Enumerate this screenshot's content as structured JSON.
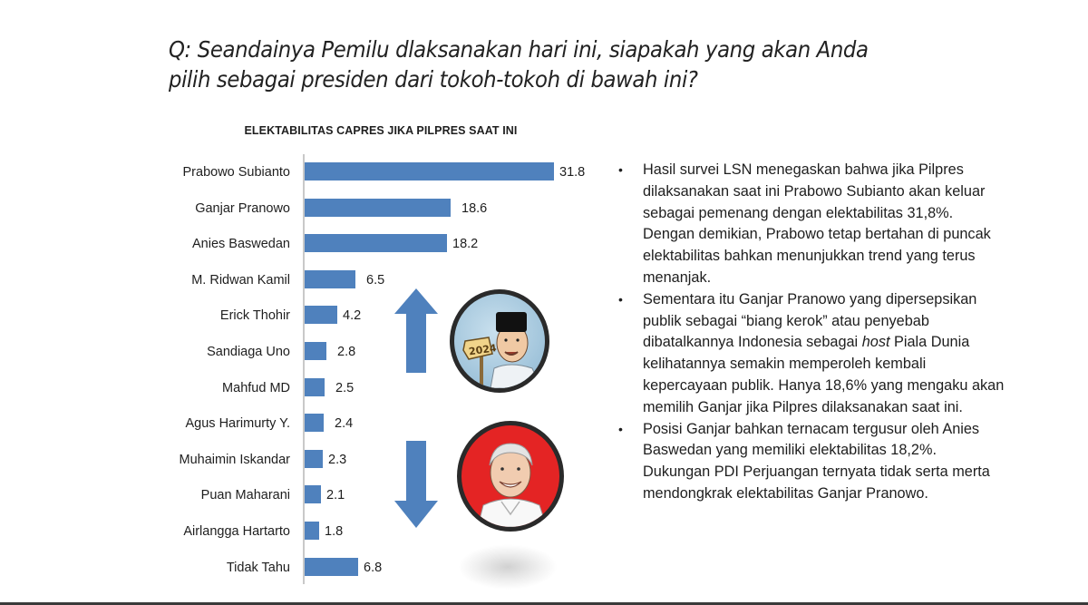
{
  "question": "Q: Seandainya Pemilu dlaksanakan hari ini, siapakah yang akan Anda pilih sebagai presiden dari tokoh-tokoh di bawah ini?",
  "question_lines": [
    "Q: Seandainya Pemilu dlaksanakan hari ini, siapakah yang akan Anda",
    "pilih sebagai presiden dari tokoh-tokoh di bawah ini?"
  ],
  "chart_data": {
    "type": "bar",
    "orientation": "horizontal",
    "title": "ELEKTABILITAS CAPRES JIKA PILPRES SAAT INI",
    "xlabel": "",
    "ylabel": "",
    "categories": [
      "Prabowo Subianto",
      "Ganjar Pranowo",
      "Anies Baswedan",
      "M. Ridwan Kamil",
      "Erick Thohir",
      "Sandiaga Uno",
      "Mahfud MD",
      "Agus Harimurty Y.",
      "Muhaimin Iskandar",
      "Puan Maharani",
      "Airlangga Hartarto",
      "Tidak Tahu"
    ],
    "values": [
      31.8,
      18.6,
      18.2,
      6.5,
      4.2,
      2.8,
      2.5,
      2.4,
      2.3,
      2.1,
      1.8,
      6.8
    ],
    "value_labels": [
      "31.8",
      "18.6",
      "18.2",
      "6.5",
      "4.2",
      "2.8",
      "2.5",
      "2.4",
      "2.3",
      "2.1",
      "1.8",
      "6.8"
    ],
    "xlim": [
      0,
      35
    ],
    "grid": false,
    "legend": null,
    "bar_color": "#4f81bd",
    "data_labels": true
  },
  "decorations": {
    "up_arrow": {
      "icon": "arrow-up-icon",
      "color": "#4f81bd"
    },
    "down_arrow": {
      "icon": "arrow-down-icon",
      "color": "#4f81bd"
    },
    "portrait_top": {
      "icon": "prabowo-caricature-icon",
      "sign_text": "2024",
      "bg": "#a9cbe0"
    },
    "portrait_bottom": {
      "icon": "ganjar-caricature-icon",
      "bg": "#e42424"
    }
  },
  "bullets": [
    {
      "parts": [
        {
          "text": "Hasil survei LSN menegaskan bahwa jika Pilpres dilaksanakan saat ini Prabowo Subianto akan keluar sebagai pemenang dengan elektabilitas 31,8%. Dengan demikian, Prabowo tetap bertahan di puncak elektabilitas bahkan menunjukkan trend yang terus menanjak.",
          "italic": false
        }
      ]
    },
    {
      "parts": [
        {
          "text": "Sementara itu Ganjar Pranowo yang dipersepsikan publik sebagai “biang kerok” atau penyebab dibatalkannya Indonesia sebagai ",
          "italic": false
        },
        {
          "text": "host",
          "italic": true
        },
        {
          "text": " Piala Dunia kelihatannya semakin memperoleh kembali kepercayaan publik. Hanya 18,6% yang mengaku akan memilih Ganjar jika Pilpres dilaksanakan saat ini.",
          "italic": false
        }
      ]
    },
    {
      "parts": [
        {
          "text": "Posisi Ganjar bahkan ternacam tergusur oleh Anies Baswedan yang memiliki elektabilitas 18,2%. Dukungan PDI Perjuangan ternyata tidak serta merta mendongkrak elektabilitas Ganjar Pranowo.",
          "italic": false
        }
      ]
    }
  ],
  "bullet_glyph": "•"
}
